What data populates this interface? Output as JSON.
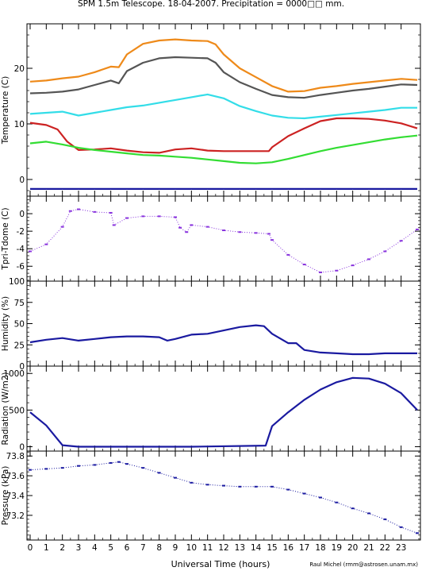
{
  "title": "SPM 1.5m Telescope. 18-04-2007. Precipitation = 0000□□ mm.",
  "credit": "Raul Michel (rmm@astrosen.unam.mx)",
  "chart_data": [
    {
      "type": "line",
      "ylabel": "Temperature (C)",
      "xlim": [
        0,
        24
      ],
      "ylim": [
        -3,
        28
      ],
      "yticks": [
        0,
        10,
        20
      ],
      "series": [
        {
          "color": "#ee8a1a",
          "values": [
            [
              0,
              17.6
            ],
            [
              1,
              17.8
            ],
            [
              2,
              18.2
            ],
            [
              3,
              18.5
            ],
            [
              4,
              19.3
            ],
            [
              5,
              20.3
            ],
            [
              5.5,
              20.2
            ],
            [
              6,
              22.5
            ],
            [
              7,
              24.4
            ],
            [
              8,
              25.0
            ],
            [
              9,
              25.2
            ],
            [
              10,
              25.0
            ],
            [
              11,
              24.9
            ],
            [
              11.5,
              24.3
            ],
            [
              12,
              22.5
            ],
            [
              13,
              20.0
            ],
            [
              14,
              18.4
            ],
            [
              15,
              16.8
            ],
            [
              16,
              15.8
            ],
            [
              17,
              15.9
            ],
            [
              18,
              16.5
            ],
            [
              19,
              16.8
            ],
            [
              20,
              17.2
            ],
            [
              21,
              17.5
            ],
            [
              22,
              17.8
            ],
            [
              23,
              18.1
            ],
            [
              24,
              17.9
            ]
          ]
        },
        {
          "color": "#555555",
          "values": [
            [
              0,
              15.5
            ],
            [
              1,
              15.6
            ],
            [
              2,
              15.8
            ],
            [
              3,
              16.2
            ],
            [
              4,
              17.0
            ],
            [
              5,
              17.8
            ],
            [
              5.5,
              17.3
            ],
            [
              6,
              19.5
            ],
            [
              7,
              21.0
            ],
            [
              8,
              21.8
            ],
            [
              9,
              22.0
            ],
            [
              10,
              21.9
            ],
            [
              11,
              21.8
            ],
            [
              11.5,
              21.0
            ],
            [
              12,
              19.3
            ],
            [
              13,
              17.5
            ],
            [
              14,
              16.3
            ],
            [
              15,
              15.2
            ],
            [
              16,
              14.8
            ],
            [
              17,
              14.7
            ],
            [
              18,
              15.2
            ],
            [
              19,
              15.6
            ],
            [
              20,
              16.0
            ],
            [
              21,
              16.3
            ],
            [
              22,
              16.7
            ],
            [
              23,
              17.1
            ],
            [
              24,
              17.0
            ]
          ]
        },
        {
          "color": "#33dde8",
          "values": [
            [
              0,
              11.8
            ],
            [
              1,
              12.0
            ],
            [
              2,
              12.2
            ],
            [
              3,
              11.5
            ],
            [
              4,
              12.0
            ],
            [
              5,
              12.5
            ],
            [
              6,
              13.0
            ],
            [
              7,
              13.3
            ],
            [
              8,
              13.8
            ],
            [
              9,
              14.3
            ],
            [
              10,
              14.8
            ],
            [
              11,
              15.3
            ],
            [
              12,
              14.6
            ],
            [
              13,
              13.2
            ],
            [
              14,
              12.3
            ],
            [
              15,
              11.5
            ],
            [
              16,
              11.1
            ],
            [
              17,
              11.0
            ],
            [
              18,
              11.3
            ],
            [
              19,
              11.6
            ],
            [
              20,
              11.9
            ],
            [
              21,
              12.2
            ],
            [
              22,
              12.5
            ],
            [
              23,
              12.9
            ],
            [
              24,
              12.9
            ]
          ]
        },
        {
          "color": "#cc2222",
          "values": [
            [
              0,
              10.2
            ],
            [
              1,
              9.8
            ],
            [
              1.7,
              9.0
            ],
            [
              2.3,
              6.8
            ],
            [
              3,
              5.3
            ],
            [
              4,
              5.4
            ],
            [
              5,
              5.6
            ],
            [
              6,
              5.2
            ],
            [
              7,
              4.9
            ],
            [
              8,
              4.8
            ],
            [
              9,
              5.4
            ],
            [
              10,
              5.6
            ],
            [
              11,
              5.2
            ],
            [
              12,
              5.1
            ],
            [
              13,
              5.1
            ],
            [
              14,
              5.1
            ],
            [
              14.8,
              5.1
            ],
            [
              15,
              5.8
            ],
            [
              16,
              7.8
            ],
            [
              17,
              9.2
            ],
            [
              18,
              10.5
            ],
            [
              19,
              11.0
            ],
            [
              20,
              11.0
            ],
            [
              21,
              10.9
            ],
            [
              22,
              10.6
            ],
            [
              23,
              10.1
            ],
            [
              24,
              9.2
            ]
          ]
        },
        {
          "color": "#33dd33",
          "values": [
            [
              0,
              6.5
            ],
            [
              1,
              6.8
            ],
            [
              2,
              6.3
            ],
            [
              3,
              5.7
            ],
            [
              4,
              5.3
            ],
            [
              5,
              5.0
            ],
            [
              6,
              4.7
            ],
            [
              7,
              4.4
            ],
            [
              8,
              4.3
            ],
            [
              9,
              4.1
            ],
            [
              10,
              3.9
            ],
            [
              11,
              3.6
            ],
            [
              12,
              3.3
            ],
            [
              13,
              3.0
            ],
            [
              14,
              2.9
            ],
            [
              15,
              3.1
            ],
            [
              16,
              3.7
            ],
            [
              17,
              4.4
            ],
            [
              18,
              5.1
            ],
            [
              19,
              5.7
            ],
            [
              20,
              6.2
            ],
            [
              21,
              6.7
            ],
            [
              22,
              7.2
            ],
            [
              23,
              7.6
            ],
            [
              24,
              7.9
            ]
          ]
        },
        {
          "color": "#1a1aa0",
          "values": [
            [
              0,
              -1.7
            ],
            [
              24,
              -1.7
            ]
          ]
        }
      ]
    },
    {
      "type": "scatter",
      "ylabel": "Tpri-Tdome (C)",
      "xlim": [
        0,
        24
      ],
      "ylim": [
        -7.7,
        2.0
      ],
      "yticks": [
        0,
        -2,
        -4,
        -6
      ],
      "series": [
        {
          "color": "#8833dd",
          "values": [
            [
              0,
              -4.3
            ],
            [
              1,
              -3.5
            ],
            [
              2,
              -1.5
            ],
            [
              2.5,
              0.3
            ],
            [
              3,
              0.5
            ],
            [
              4,
              0.2
            ],
            [
              5,
              0.1
            ],
            [
              5.2,
              -1.3
            ],
            [
              6,
              -0.5
            ],
            [
              7,
              -0.3
            ],
            [
              8,
              -0.3
            ],
            [
              9,
              -0.4
            ],
            [
              9.3,
              -1.6
            ],
            [
              9.7,
              -2.1
            ],
            [
              10,
              -1.3
            ],
            [
              11,
              -1.5
            ],
            [
              12,
              -1.9
            ],
            [
              13,
              -2.1
            ],
            [
              14,
              -2.2
            ],
            [
              14.8,
              -2.3
            ],
            [
              15,
              -3.0
            ],
            [
              16,
              -4.7
            ],
            [
              17,
              -5.8
            ],
            [
              18,
              -6.7
            ],
            [
              19,
              -6.5
            ],
            [
              20,
              -5.9
            ],
            [
              21,
              -5.2
            ],
            [
              22,
              -4.3
            ],
            [
              23,
              -3.1
            ],
            [
              24,
              -1.8
            ]
          ]
        }
      ]
    },
    {
      "type": "line",
      "ylabel": "Humidity (%)",
      "xlim": [
        0,
        24
      ],
      "ylim": [
        0,
        100
      ],
      "yticks": [
        0,
        25,
        50,
        75,
        100
      ],
      "series": [
        {
          "color": "#1a1aa0",
          "values": [
            [
              0,
              28
            ],
            [
              1,
              31
            ],
            [
              2,
              33
            ],
            [
              3,
              30
            ],
            [
              4,
              32
            ],
            [
              5,
              34
            ],
            [
              6,
              35
            ],
            [
              7,
              35
            ],
            [
              8,
              34
            ],
            [
              8.5,
              30
            ],
            [
              9,
              32
            ],
            [
              10,
              37
            ],
            [
              11,
              38
            ],
            [
              12,
              42
            ],
            [
              13,
              46
            ],
            [
              14,
              48
            ],
            [
              14.5,
              47
            ],
            [
              15,
              38
            ],
            [
              16,
              27
            ],
            [
              16.5,
              27
            ],
            [
              17,
              19
            ],
            [
              18,
              16
            ],
            [
              19,
              15
            ],
            [
              20,
              14
            ],
            [
              21,
              14
            ],
            [
              22,
              15
            ],
            [
              23,
              15
            ],
            [
              24,
              15
            ]
          ]
        }
      ]
    },
    {
      "type": "line",
      "ylabel": "Radiation (W/m2)",
      "xlim": [
        0,
        24
      ],
      "ylim": [
        -60,
        1100
      ],
      "yticks": [
        0,
        500,
        1000
      ],
      "series": [
        {
          "color": "#1a1aa0",
          "values": [
            [
              0,
              470
            ],
            [
              1,
              290
            ],
            [
              2,
              20
            ],
            [
              3,
              0
            ],
            [
              5,
              0
            ],
            [
              10,
              0
            ],
            [
              14.6,
              15
            ],
            [
              15,
              280
            ],
            [
              16,
              470
            ],
            [
              17,
              640
            ],
            [
              18,
              780
            ],
            [
              19,
              880
            ],
            [
              20,
              940
            ],
            [
              21,
              930
            ],
            [
              22,
              860
            ],
            [
              23,
              730
            ],
            [
              24,
              500
            ]
          ]
        }
      ]
    },
    {
      "type": "scatter",
      "ylabel": "Pressure (kPa)",
      "xlim": [
        0,
        24
      ],
      "ylim": [
        72.95,
        73.85
      ],
      "yticks": [
        73.2,
        73.4,
        73.6,
        73.8
      ],
      "tick_labels": [
        "73.2",
        "73.4",
        "73.6",
        "73.8"
      ],
      "series": [
        {
          "color": "#1a1aa0",
          "values": [
            [
              0,
              73.66
            ],
            [
              1,
              73.67
            ],
            [
              2,
              73.68
            ],
            [
              3,
              73.7
            ],
            [
              4,
              73.71
            ],
            [
              5,
              73.73
            ],
            [
              5.5,
              73.74
            ],
            [
              6,
              73.72
            ],
            [
              7,
              73.68
            ],
            [
              8,
              73.63
            ],
            [
              9,
              73.58
            ],
            [
              10,
              73.53
            ],
            [
              11,
              73.51
            ],
            [
              12,
              73.5
            ],
            [
              13,
              73.49
            ],
            [
              14,
              73.49
            ],
            [
              15,
              73.49
            ],
            [
              16,
              73.46
            ],
            [
              17,
              73.42
            ],
            [
              18,
              73.38
            ],
            [
              19,
              73.33
            ],
            [
              20,
              73.27
            ],
            [
              21,
              73.22
            ],
            [
              22,
              73.16
            ],
            [
              23,
              73.08
            ],
            [
              24,
              73.02
            ]
          ]
        }
      ]
    }
  ],
  "x_axis": {
    "label": "Universal Time (hours)",
    "ticks": [
      "0",
      "1",
      "2",
      "3",
      "4",
      "5",
      "6",
      "7",
      "8",
      "9",
      "10",
      "11",
      "12",
      "13",
      "14",
      "15",
      "16",
      "17",
      "18",
      "19",
      "20",
      "21",
      "22",
      "23"
    ]
  }
}
